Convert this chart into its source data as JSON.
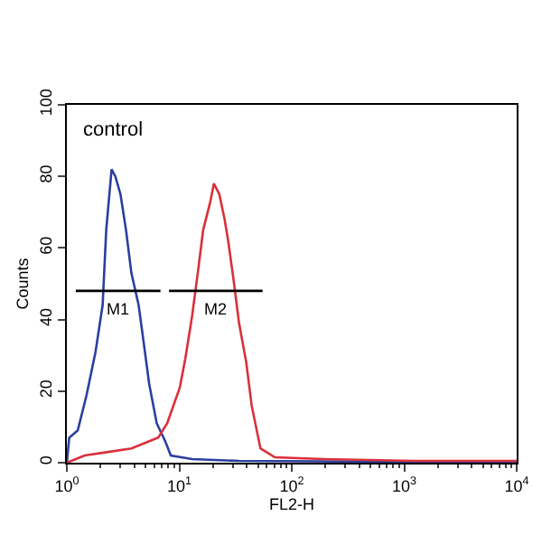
{
  "chart_data": {
    "type": "line",
    "xlabel": "FL2-H",
    "ylabel": "Counts",
    "log": "x",
    "xlim": [
      1,
      10000
    ],
    "xticks": [
      {
        "value": 1,
        "label": "10$^{0}$"
      },
      {
        "value": 10,
        "label": "10$^{1}$"
      },
      {
        "value": 100,
        "label": "10$^{2}$"
      },
      {
        "value": 1000,
        "label": "10$^{3}$"
      },
      {
        "value": 10000,
        "label": "10$^{4}$"
      }
    ],
    "ylim": [
      0,
      100
    ],
    "yticks": [
      0,
      20,
      40,
      60,
      80,
      100
    ],
    "marker": "none",
    "line_style": "solid",
    "annotations": [
      "control",
      "M1",
      "M2"
    ],
    "series": [
      {
        "color": "#2b3f9e",
        "x": [
          1.0,
          1.05,
          1.25,
          1.5,
          1.8,
          2.08,
          2.24,
          2.5,
          2.7,
          3.0,
          3.36,
          3.75,
          4.35,
          4.85,
          5.4,
          6.3,
          7.5,
          8.4,
          13,
          34,
          400,
          10000
        ],
        "values": [
          0,
          7,
          9,
          19,
          31,
          44,
          65,
          82,
          80,
          75,
          65,
          53,
          44,
          33,
          22,
          11,
          6,
          2,
          1,
          0.5,
          0.3,
          0.3
        ]
      },
      {
        "color": "#d9303a",
        "x": [
          1.0,
          1.44,
          2.33,
          3.75,
          5.4,
          6.5,
          7.8,
          10.1,
          11.3,
          13,
          14.6,
          16.3,
          18.9,
          20.3,
          22.7,
          25.3,
          27.2,
          30.4,
          34,
          39.4,
          44,
          52.7,
          70.8,
          191,
          1200,
          10000
        ],
        "values": [
          0,
          2,
          3,
          4,
          6,
          7,
          11,
          21,
          29,
          41,
          53,
          65,
          73,
          78,
          75,
          68,
          62,
          51,
          39,
          28,
          16,
          4,
          1.5,
          1,
          0.5,
          0.5
        ]
      },
      {
        "color": "#000000",
        "x": [
          1.2,
          6.8
        ],
        "values": [
          48,
          48
        ]
      },
      {
        "color": "#000000",
        "x": [
          8.1,
          55
        ],
        "values": [
          48,
          48
        ]
      }
    ]
  }
}
